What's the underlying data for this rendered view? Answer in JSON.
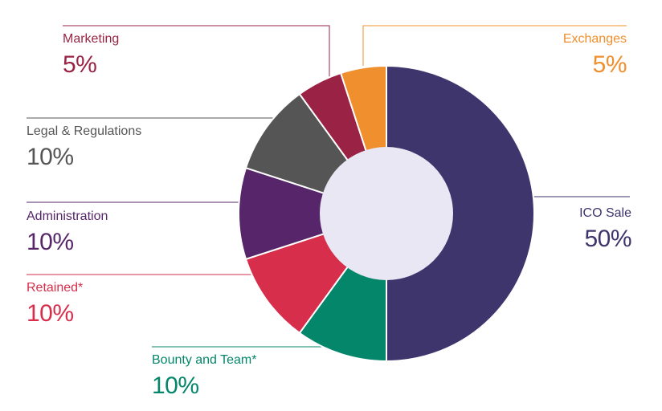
{
  "chart_data": {
    "type": "pie",
    "subtype": "donut",
    "title": "",
    "slices": [
      {
        "label": "ICO Sale",
        "value": 50,
        "display": "50%",
        "color": "#3e356d"
      },
      {
        "label": "Bounty and Team*",
        "value": 10,
        "display": "10%",
        "color": "#03866a"
      },
      {
        "label": "Retained*",
        "value": 10,
        "display": "10%",
        "color": "#d62e4b"
      },
      {
        "label": "Administration",
        "value": 10,
        "display": "10%",
        "color": "#56256a"
      },
      {
        "label": "Legal & Regulations",
        "value": 10,
        "display": "10%",
        "color": "#555555"
      },
      {
        "label": "Marketing",
        "value": 5,
        "display": "5%",
        "color": "#9a2345"
      },
      {
        "label": "Exchanges",
        "value": 5,
        "display": "5%",
        "color": "#ef8f2e"
      }
    ],
    "center_color": "#e9e7f3"
  }
}
